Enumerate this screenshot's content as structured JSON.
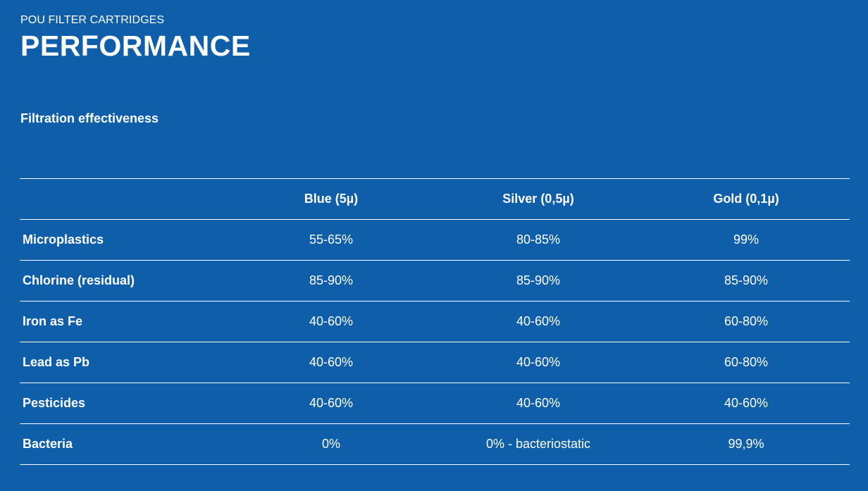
{
  "header": {
    "eyebrow": "POU FILTER CARTRIDGES",
    "title": "PERFORMANCE"
  },
  "section": {
    "subtitle": "Filtration effectiveness"
  },
  "table": {
    "columns": [
      "",
      "Blue (5µ)",
      "Silver (0,5µ)",
      "Gold (0,1µ)"
    ],
    "rows": [
      {
        "label": "Microplastics",
        "values": [
          "55-65%",
          "80-85%",
          "99%"
        ]
      },
      {
        "label": "Chlorine (residual)",
        "values": [
          "85-90%",
          "85-90%",
          "85-90%"
        ]
      },
      {
        "label": "Iron as Fe",
        "values": [
          "40-60%",
          "40-60%",
          "60-80%"
        ]
      },
      {
        "label": "Lead as Pb",
        "values": [
          "40-60%",
          "40-60%",
          "60-80%"
        ]
      },
      {
        "label": "Pesticides",
        "values": [
          "40-60%",
          "40-60%",
          "40-60%"
        ]
      },
      {
        "label": "Bacteria",
        "values": [
          "0%",
          "0% - bacteriostatic",
          "99,9%"
        ]
      }
    ]
  },
  "colors": {
    "background": "#0f5ea9",
    "text": "#ffffff"
  }
}
